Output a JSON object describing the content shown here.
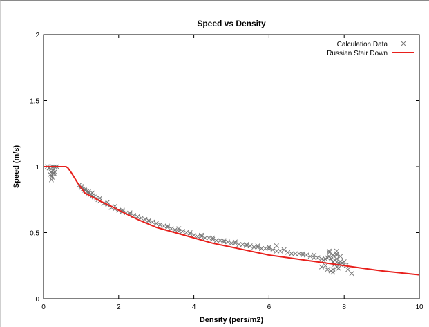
{
  "chart_data": {
    "type": "scatter",
    "title": "Speed vs Density",
    "xlabel": "Density (pers/m2)",
    "ylabel": "Speed (m/s)",
    "xlim": [
      0,
      10
    ],
    "ylim": [
      0,
      2
    ],
    "xticks": [
      0,
      2,
      4,
      6,
      8,
      10
    ],
    "yticks": [
      0,
      0.5,
      1,
      1.5,
      2
    ],
    "xtick_labels": [
      "0",
      "2",
      "4",
      "6",
      "8",
      "10"
    ],
    "ytick_labels": [
      "0",
      "0.5",
      "1",
      "1.5",
      "2"
    ],
    "grid": false,
    "legend_position": "top-right",
    "colors": {
      "scatter": "#777777",
      "line": "#e8201c",
      "axis": "#000000"
    },
    "series": [
      {
        "name": "Calculation Data",
        "kind": "scatter",
        "marker": "x",
        "x": [
          0.1,
          0.15,
          0.2,
          0.25,
          0.3,
          0.35,
          0.2,
          0.22,
          0.25,
          0.28,
          0.18,
          0.23,
          0.27,
          0.3,
          0.21,
          0.26,
          0.95,
          1.0,
          1.05,
          1.1,
          1.15,
          1.2,
          1.25,
          1.3,
          1.35,
          1.4,
          1.45,
          1.5,
          1.6,
          1.7,
          1.8,
          1.9,
          2.0,
          2.1,
          2.2,
          2.3,
          2.4,
          2.5,
          2.6,
          2.7,
          2.8,
          2.9,
          3.0,
          3.1,
          3.2,
          3.3,
          3.4,
          3.5,
          3.6,
          3.7,
          3.8,
          3.9,
          4.0,
          4.1,
          4.2,
          4.3,
          4.4,
          4.5,
          4.6,
          4.7,
          4.8,
          4.9,
          5.0,
          5.1,
          5.2,
          5.3,
          5.4,
          5.5,
          5.6,
          5.7,
          5.8,
          5.9,
          6.0,
          6.1,
          6.2,
          6.3,
          6.5,
          6.7,
          6.8,
          6.9,
          7.0,
          7.1,
          7.2,
          7.3,
          7.4,
          7.45,
          7.5,
          7.55,
          7.6,
          7.65,
          7.7,
          7.75,
          7.8,
          7.85,
          7.9,
          7.6,
          7.7,
          7.8,
          7.9,
          7.5,
          7.7,
          7.8,
          7.65,
          7.75,
          7.85,
          7.95,
          8.0,
          8.05,
          8.1,
          8.2,
          1.0,
          1.1,
          1.2,
          1.3,
          1.5,
          1.7,
          1.9,
          2.1,
          2.3,
          2.5,
          2.8,
          3.0,
          3.3,
          3.6,
          3.9,
          4.2,
          4.5,
          4.8,
          5.1,
          5.4,
          5.7,
          6.0,
          6.2,
          6.4,
          6.6,
          6.9,
          7.2,
          7.4,
          7.6,
          7.8,
          7.7,
          7.9,
          7.55,
          7.8
        ],
        "y": [
          1.0,
          0.99,
          1.0,
          1.0,
          1.0,
          1.0,
          0.96,
          0.93,
          0.97,
          0.95,
          0.94,
          0.92,
          0.98,
          0.96,
          0.9,
          0.95,
          0.86,
          0.85,
          0.83,
          0.82,
          0.81,
          0.8,
          0.79,
          0.78,
          0.77,
          0.76,
          0.75,
          0.74,
          0.72,
          0.71,
          0.69,
          0.68,
          0.67,
          0.66,
          0.65,
          0.64,
          0.63,
          0.62,
          0.61,
          0.6,
          0.59,
          0.58,
          0.57,
          0.56,
          0.55,
          0.54,
          0.53,
          0.52,
          0.51,
          0.51,
          0.5,
          0.49,
          0.48,
          0.47,
          0.47,
          0.46,
          0.46,
          0.45,
          0.44,
          0.44,
          0.43,
          0.43,
          0.42,
          0.42,
          0.41,
          0.41,
          0.4,
          0.4,
          0.39,
          0.39,
          0.38,
          0.38,
          0.38,
          0.37,
          0.36,
          0.36,
          0.35,
          0.34,
          0.34,
          0.33,
          0.33,
          0.32,
          0.31,
          0.31,
          0.3,
          0.29,
          0.3,
          0.31,
          0.32,
          0.3,
          0.28,
          0.29,
          0.3,
          0.27,
          0.26,
          0.35,
          0.33,
          0.34,
          0.32,
          0.25,
          0.22,
          0.24,
          0.21,
          0.26,
          0.23,
          0.27,
          0.28,
          0.25,
          0.22,
          0.19,
          0.84,
          0.83,
          0.81,
          0.8,
          0.76,
          0.73,
          0.7,
          0.67,
          0.65,
          0.62,
          0.59,
          0.57,
          0.55,
          0.53,
          0.5,
          0.48,
          0.46,
          0.44,
          0.43,
          0.41,
          0.4,
          0.39,
          0.4,
          0.37,
          0.34,
          0.34,
          0.33,
          0.24,
          0.36,
          0.33,
          0.2,
          0.28,
          0.22,
          0.36
        ]
      },
      {
        "name": "Russian Stair Down",
        "kind": "line",
        "x": [
          0,
          0.6,
          0.65,
          0.75,
          0.9,
          1.1,
          1.3,
          1.5,
          1.8,
          2.0,
          2.5,
          3.0,
          3.5,
          4.0,
          4.5,
          5.0,
          5.5,
          6.0,
          6.5,
          7.0,
          7.5,
          8.0,
          8.5,
          9.0,
          9.5,
          10.0
        ],
        "y": [
          1.0,
          1.0,
          0.99,
          0.95,
          0.88,
          0.8,
          0.77,
          0.74,
          0.7,
          0.67,
          0.6,
          0.54,
          0.5,
          0.46,
          0.42,
          0.39,
          0.36,
          0.33,
          0.31,
          0.29,
          0.27,
          0.25,
          0.23,
          0.21,
          0.195,
          0.18
        ]
      }
    ]
  }
}
